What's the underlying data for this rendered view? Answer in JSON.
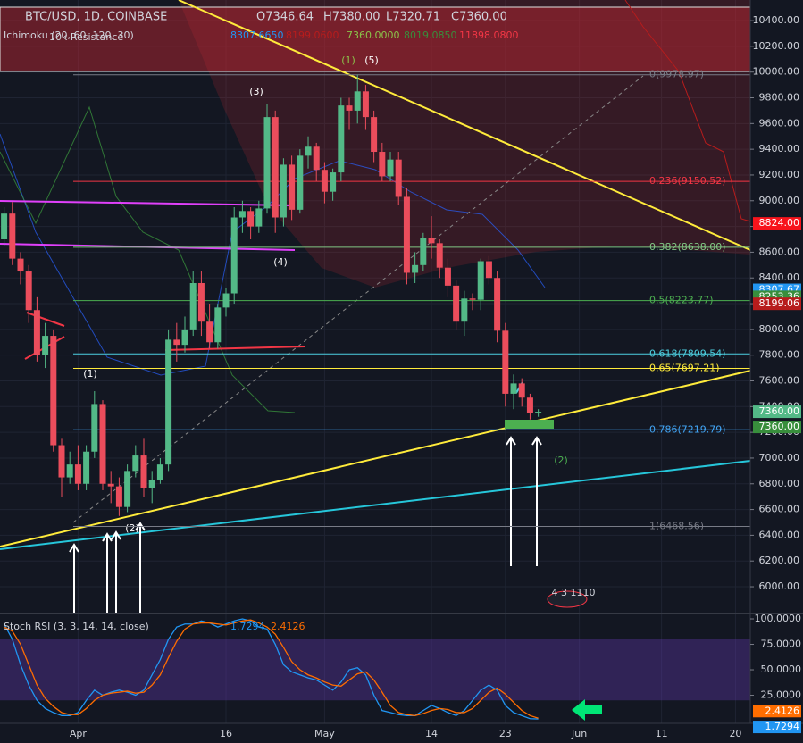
{
  "header": {
    "symbol": "BTC/USD, 1D, COINBASE",
    "open": "O7346.64",
    "high": "H7380.00",
    "low": "L7320.71",
    "close": "C7360.00",
    "indicator": "Ichimoku (20, 60, 120, 30)",
    "drawing": "10k Resistance",
    "indicator_values": [
      "8307.6650",
      "8199.0600",
      "7360.0000",
      "8019.0850",
      "11898.0800"
    ]
  },
  "annotations": [
    "(1)",
    "(5)",
    "(3)",
    "(4)",
    "(1)",
    "(2)",
    "(2)"
  ],
  "event_label": "4 3 1110",
  "chart_data": [
    {
      "type": "candlestick",
      "x": [
        -39,
        -38,
        -37,
        -36,
        -35,
        -34,
        -33,
        -32,
        -31,
        -30,
        -29,
        -28,
        -27,
        -26,
        -25,
        -24,
        -23,
        -22,
        -21,
        -20,
        -19,
        -18,
        -17,
        -16,
        -15,
        -14,
        -13,
        -12,
        -11,
        -10,
        -9,
        -8,
        -7,
        -6,
        -5,
        -4,
        -3,
        -2,
        -1,
        0,
        1,
        2,
        3,
        4,
        5,
        6,
        7,
        8,
        9,
        10,
        11,
        12,
        13,
        14,
        15,
        16,
        17,
        18,
        19,
        20,
        21,
        22,
        23,
        24,
        25,
        26
      ],
      "open": [
        8700,
        8900,
        8550,
        8450,
        8150,
        7800,
        7950,
        7100,
        6850,
        6950,
        6800,
        7050,
        7420,
        6800,
        6780,
        6620,
        6900,
        7020,
        6770,
        6830,
        6950,
        7920,
        7880,
        8000,
        8360,
        8060,
        7900,
        8170,
        8280,
        8870,
        8920,
        8800,
        8940,
        9650,
        8870,
        9280,
        8930,
        9350,
        9420,
        9240,
        9070,
        9220,
        9740,
        9700,
        9850,
        9650,
        9380,
        9190,
        9320,
        9030,
        8440,
        8500,
        8710,
        8670,
        8480,
        8340,
        8060,
        8240,
        8230,
        8530,
        8400,
        7990,
        7500,
        7580,
        7470,
        7346.64
      ],
      "high": [
        8950,
        8990,
        8600,
        8500,
        8250,
        8050,
        8000,
        7150,
        7050,
        7100,
        7100,
        7520,
        7450,
        6900,
        6850,
        6950,
        7100,
        7150,
        6900,
        7000,
        8000,
        8050,
        8100,
        8450,
        8450,
        8200,
        8200,
        8320,
        8950,
        9000,
        8950,
        9000,
        9750,
        9700,
        9330,
        9350,
        9400,
        9500,
        9450,
        9300,
        9250,
        9800,
        9800,
        9980,
        9900,
        9700,
        9450,
        9380,
        9380,
        9100,
        8600,
        8750,
        8880,
        8700,
        8550,
        8380,
        8300,
        8280,
        8550,
        8570,
        8450,
        8050,
        7650,
        7620,
        7500,
        7380
      ],
      "low": [
        8650,
        8500,
        8350,
        8050,
        7750,
        7700,
        7050,
        6700,
        6800,
        6750,
        6750,
        7000,
        6750,
        6650,
        6550,
        6580,
        6850,
        6700,
        6650,
        6800,
        6900,
        7750,
        7820,
        7950,
        7950,
        7850,
        7850,
        8100,
        8200,
        8750,
        8700,
        8750,
        8900,
        8750,
        8800,
        8850,
        8900,
        9250,
        9150,
        8980,
        9000,
        9150,
        9550,
        9600,
        9550,
        9300,
        9150,
        9150,
        8970,
        8350,
        8360,
        8450,
        8550,
        8400,
        8250,
        8000,
        7950,
        8150,
        8150,
        8350,
        7900,
        7400,
        7380,
        7400,
        7300,
        7320.71
      ],
      "close": [
        8900,
        8550,
        8450,
        8150,
        7800,
        7950,
        7100,
        6850,
        6950,
        6800,
        7050,
        7420,
        6800,
        6780,
        6620,
        6900,
        7020,
        6770,
        6830,
        6950,
        7920,
        7880,
        8000,
        8360,
        8060,
        7900,
        8170,
        8280,
        8870,
        8920,
        8800,
        8940,
        9650,
        8870,
        9280,
        8930,
        9350,
        9420,
        9240,
        9070,
        9220,
        9740,
        9700,
        9850,
        9650,
        9380,
        9190,
        9320,
        9030,
        8440,
        8500,
        8710,
        8670,
        8480,
        8340,
        8060,
        8240,
        8230,
        8530,
        8400,
        7990,
        7500,
        7580,
        7470,
        7350,
        7360
      ],
      "up_color": "#53b987",
      "down_color": "#eb4d5c",
      "xlim": [
        -39.5,
        51.8
      ],
      "xticks": [
        {
          "value": -30,
          "label": "Apr"
        },
        {
          "value": -12,
          "label": "16"
        },
        {
          "value": 0,
          "label": "May"
        },
        {
          "value": 13,
          "label": "14"
        },
        {
          "value": 22,
          "label": "23"
        },
        {
          "value": 31,
          "label": "Jun"
        },
        {
          "value": 41,
          "label": "11"
        },
        {
          "value": 50,
          "label": "20"
        }
      ],
      "ylim": [
        5792,
        10560
      ],
      "yticks": [
        {
          "value": 6000,
          "label": "6000.00"
        },
        {
          "value": 6200,
          "label": "6200.00"
        },
        {
          "value": 6400,
          "label": "6400.00"
        },
        {
          "value": 6600,
          "label": "6600.00"
        },
        {
          "value": 6800,
          "label": "6800.00"
        },
        {
          "value": 7000,
          "label": "7000.00"
        },
        {
          "value": 7200,
          "label": "7200.00"
        },
        {
          "value": 7400,
          "label": "7400.00"
        },
        {
          "value": 7600,
          "label": "7600.00"
        },
        {
          "value": 7800,
          "label": "7800.00"
        },
        {
          "value": 8000,
          "label": "8000.00"
        },
        {
          "value": 8200,
          "label": "8200.00"
        },
        {
          "value": 8400,
          "label": "8400.00"
        },
        {
          "value": 8600,
          "label": "8600.00"
        },
        {
          "value": 8800,
          "label": "8800.00"
        },
        {
          "value": 9000,
          "label": "9000.00"
        },
        {
          "value": 9200,
          "label": "9200.00"
        },
        {
          "value": 9400,
          "label": "9400.00"
        },
        {
          "value": 9600,
          "label": "9600.00"
        },
        {
          "value": 9800,
          "label": "9800.00"
        },
        {
          "value": 10000,
          "label": "10000.00"
        },
        {
          "value": 10200,
          "label": "10200.00"
        },
        {
          "value": 10400,
          "label": "10400.00"
        }
      ],
      "grid": true,
      "fib_levels": [
        {
          "value": 9978.97,
          "label": "0(9978.97)",
          "color": "#787b86"
        },
        {
          "value": 9150.52,
          "label": "0.236(9150.52)",
          "color": "#f23645"
        },
        {
          "value": 8638.0,
          "label": "0.382(8638.00)",
          "color": "#81c784"
        },
        {
          "value": 8223.77,
          "label": "0.5(8223.77)",
          "color": "#4caf50"
        },
        {
          "value": 7809.54,
          "label": "0.618(7809.54)",
          "color": "#4dd0e1"
        },
        {
          "value": 7697.21,
          "label": "0.65(7697.21)",
          "color": "#ffeb3b"
        },
        {
          "value": 7219.79,
          "label": "0.786(7219.79)",
          "color": "#42a5f5"
        },
        {
          "value": 6468.56,
          "label": "1(6468.56)",
          "color": "#787b86"
        }
      ],
      "price_badges": [
        {
          "value": 8824,
          "label": "8824.00",
          "color": "#f7141c"
        },
        {
          "value": 8307.67,
          "label": "8307.67",
          "color": "#2196f3"
        },
        {
          "value": 8253.36,
          "label": "8253.36",
          "color": "#388e3c"
        },
        {
          "value": 8199.06,
          "label": "8199.06",
          "color": "#b71c1c"
        },
        {
          "value": 7360,
          "label": "7360.00",
          "color": "#53b987"
        },
        {
          "value": 7360,
          "label": "7360.00",
          "color": "#388e3c"
        }
      ]
    },
    {
      "type": "line",
      "title": "Stoch RSI (3, 3, 14, 14, close)",
      "series": [
        {
          "color": "#2196f3",
          "label": "1.7294",
          "values": [
            95,
            80,
            55,
            35,
            20,
            12,
            8,
            5,
            5,
            8,
            20,
            30,
            25,
            28,
            30,
            28,
            25,
            30,
            45,
            60,
            80,
            92,
            95,
            95,
            98,
            96,
            92,
            95,
            98,
            100,
            98,
            92,
            90,
            75,
            55,
            48,
            45,
            42,
            40,
            35,
            30,
            38,
            50,
            52,
            45,
            25,
            10,
            8,
            6,
            5,
            5,
            10,
            15,
            12,
            8,
            5,
            10,
            20,
            30,
            35,
            30,
            15,
            8,
            5,
            2,
            1.7294
          ]
        },
        {
          "color": "#ff6d00",
          "label": "2.4126",
          "values": [
            92,
            88,
            75,
            55,
            35,
            22,
            14,
            8,
            6,
            6,
            12,
            20,
            25,
            27,
            28,
            29,
            27,
            28,
            35,
            45,
            62,
            78,
            90,
            95,
            96,
            96,
            95,
            94,
            96,
            98,
            99,
            96,
            92,
            85,
            72,
            58,
            50,
            45,
            42,
            38,
            35,
            34,
            40,
            46,
            48,
            40,
            28,
            15,
            8,
            6,
            5,
            7,
            10,
            12,
            11,
            8,
            8,
            12,
            20,
            28,
            32,
            26,
            18,
            10,
            5,
            2.4126
          ]
        }
      ],
      "ylim": [
        -2.6,
        104.4
      ],
      "yticks": [
        {
          "value": 25,
          "label": "25.0000"
        },
        {
          "value": 50,
          "label": "50.0000"
        },
        {
          "value": 75,
          "label": "75.0000"
        },
        {
          "value": 100,
          "label": "100.0000"
        }
      ]
    }
  ]
}
